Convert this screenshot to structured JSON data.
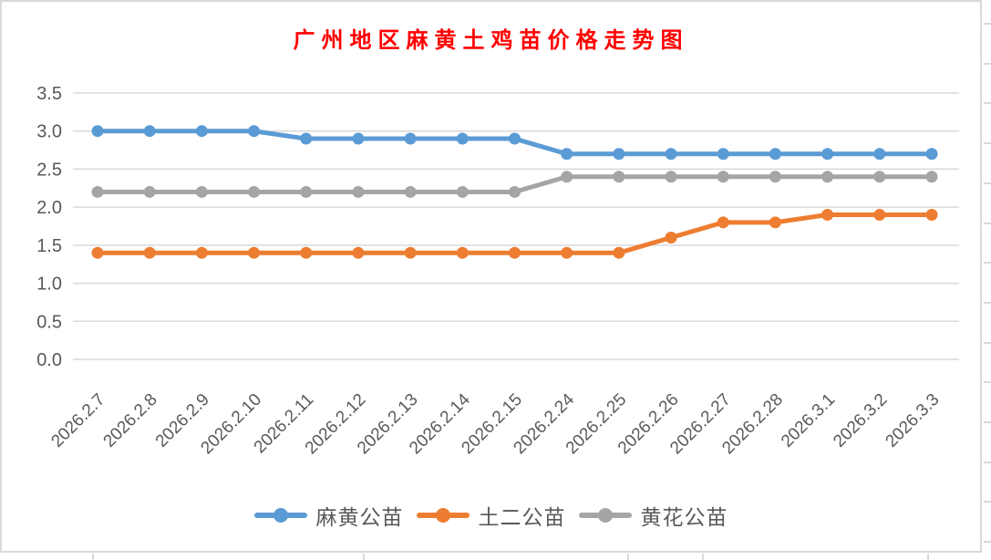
{
  "chart_data": {
    "type": "line",
    "title": "广州地区麻黄土鸡苗价格走势图",
    "title_color": "#FF0000",
    "categories": [
      "2026.2.7",
      "2026.2.8",
      "2026.2.9",
      "2026.2.10",
      "2026.2.11",
      "2026.2.12",
      "2026.2.13",
      "2026.2.14",
      "2026.2.15",
      "2026.2.24",
      "2026.2.25",
      "2026.2.26",
      "2026.2.27",
      "2026.2.28",
      "2026.3.1",
      "2026.3.2",
      "2026.3.3"
    ],
    "series": [
      {
        "name": "麻黄公苗",
        "color": "#5B9BD5",
        "values": [
          3.0,
          3.0,
          3.0,
          3.0,
          2.9,
          2.9,
          2.9,
          2.9,
          2.9,
          2.7,
          2.7,
          2.7,
          2.7,
          2.7,
          2.7,
          2.7,
          2.7
        ]
      },
      {
        "name": "土二公苗",
        "color": "#ED7D31",
        "values": [
          1.4,
          1.4,
          1.4,
          1.4,
          1.4,
          1.4,
          1.4,
          1.4,
          1.4,
          1.4,
          1.4,
          1.6,
          1.8,
          1.8,
          1.9,
          1.9,
          1.9
        ]
      },
      {
        "name": "黄花公苗",
        "color": "#A5A5A5",
        "values": [
          2.2,
          2.2,
          2.2,
          2.2,
          2.2,
          2.2,
          2.2,
          2.2,
          2.2,
          2.4,
          2.4,
          2.4,
          2.4,
          2.4,
          2.4,
          2.4,
          2.4
        ]
      }
    ],
    "xlabel": "",
    "ylabel": "",
    "ylim": [
      0.0,
      3.5
    ],
    "y_ticks": [
      "0.0",
      "0.5",
      "1.0",
      "1.5",
      "2.0",
      "2.5",
      "3.0",
      "3.5"
    ],
    "grid": true,
    "grid_color": "#D9D9D9",
    "axis_text_color": "#595959",
    "legend_position": "bottom",
    "marker": "circle"
  }
}
